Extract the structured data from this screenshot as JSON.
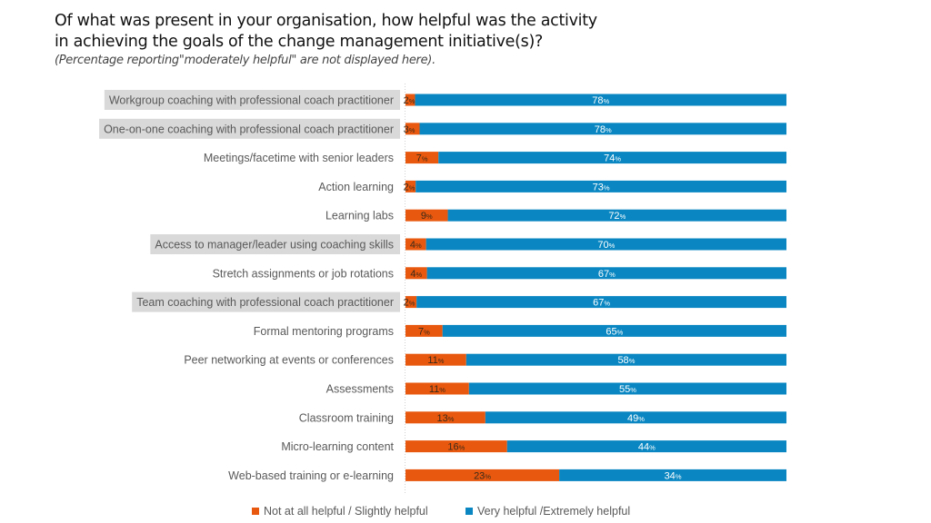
{
  "chart_data": {
    "type": "bar",
    "orientation": "horizontal",
    "stacked": true,
    "normalized": true,
    "title": "Of what was present in your organisation, how helpful was the activity in achieving the goals of the change management initiative(s)?",
    "title_line1": "Of what was present in your organisation, how helpful was the activity",
    "title_line2": "in achieving the goals of the change management initiative(s)?",
    "subtitle": "(Percentage reporting\"moderately helpful\" are not displayed here).",
    "xlabel": "",
    "ylabel": "",
    "grid": false,
    "legend_position": "bottom",
    "value_suffix": "%",
    "categories": [
      "Workgroup coaching with professional coach practitioner",
      "One-on-one coaching with professional coach practitioner",
      "Meetings/facetime with senior leaders",
      "Action learning",
      "Learning labs",
      "Access to manager/leader using coaching skills",
      "Stretch assignments or job rotations",
      "Team coaching with professional coach practitioner",
      "Formal mentoring programs",
      "Peer networking at events or conferences",
      "Assessments",
      "Classroom training",
      "Micro-learning content",
      "Web-based training or e-learning"
    ],
    "highlighted": [
      true,
      true,
      false,
      false,
      false,
      true,
      false,
      true,
      false,
      false,
      false,
      false,
      false,
      false
    ],
    "series": [
      {
        "name": "Not at all helpful / Slightly helpful",
        "color": "#E8580E",
        "label_color": "#3a2a1a",
        "values": [
          2,
          3,
          7,
          2,
          9,
          4,
          4,
          2,
          7,
          11,
          11,
          13,
          16,
          23
        ]
      },
      {
        "name": "Very helpful /Extremely helpful",
        "color": "#0A87C2",
        "label_color": "#ffffff",
        "values": [
          78,
          78,
          74,
          73,
          72,
          70,
          67,
          67,
          65,
          58,
          55,
          49,
          44,
          34
        ]
      }
    ]
  },
  "colors": {
    "highlight_bg": "#D9D9D9",
    "axis_line": "#D0D0D0"
  }
}
